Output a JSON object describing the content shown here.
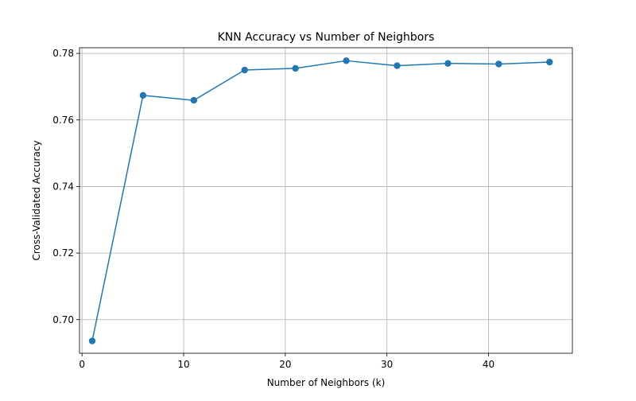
{
  "chart_data": {
    "type": "line",
    "title": "KNN Accuracy vs Number of Neighbors",
    "xlabel": "Number of Neighbors (k)",
    "ylabel": "Cross-Validated Accuracy",
    "xlim": [
      -0.25,
      48.25
    ],
    "ylim": [
      0.6899,
      0.7817
    ],
    "xticks": [
      0,
      10,
      20,
      30,
      40
    ],
    "xtick_labels": [
      "0",
      "10",
      "20",
      "30",
      "40"
    ],
    "yticks": [
      0.7,
      0.72,
      0.74,
      0.76,
      0.78
    ],
    "ytick_labels": [
      "0.70",
      "0.72",
      "0.74",
      "0.76",
      "0.78"
    ],
    "grid": true,
    "series": [
      {
        "color": "#1f77b4",
        "marker": "circle",
        "x": [
          1,
          6,
          11,
          16,
          21,
          26,
          31,
          36,
          41,
          46
        ],
        "y": [
          0.6936,
          0.7674,
          0.7659,
          0.775,
          0.7755,
          0.7778,
          0.7763,
          0.777,
          0.7768,
          0.7774
        ]
      }
    ]
  }
}
